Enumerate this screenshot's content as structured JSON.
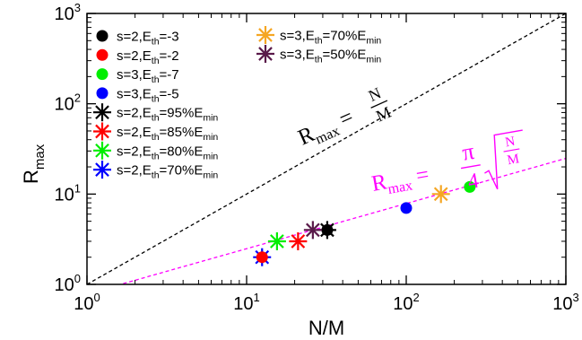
{
  "chart_data": {
    "type": "scatter",
    "title": "",
    "xlabel": "N/M",
    "ylabel_main": "R",
    "ylabel_sub": "max",
    "xscale": "log",
    "yscale": "log",
    "xlim": [
      1,
      1000
    ],
    "ylim": [
      1,
      1000
    ],
    "x_ticks": [
      {
        "value": 1,
        "base": "10",
        "exp": "0"
      },
      {
        "value": 10,
        "base": "10",
        "exp": "1"
      },
      {
        "value": 100,
        "base": "10",
        "exp": "2"
      },
      {
        "value": 1000,
        "base": "10",
        "exp": "3"
      }
    ],
    "y_ticks": [
      {
        "value": 1,
        "base": "10",
        "exp": "0"
      },
      {
        "value": 10,
        "base": "10",
        "exp": "1"
      },
      {
        "value": 100,
        "base": "10",
        "exp": "2"
      },
      {
        "value": 1000,
        "base": "10",
        "exp": "3"
      }
    ],
    "grid": false,
    "legend_placement": "top-left",
    "lines": [
      {
        "style": "dashed",
        "color": "#000000",
        "formula": "y = x"
      },
      {
        "style": "dashed",
        "color": "#ff00ff",
        "formula": "y = (pi/4) * sqrt(x)"
      }
    ],
    "annotations": {
      "black": {
        "lhs_main": "R",
        "lhs_sub": "max",
        "eq": "=",
        "num": "N",
        "den": "M"
      },
      "magenta": {
        "lhs_main": "R",
        "lhs_sub": "max",
        "eq": "=",
        "num": "π",
        "den": "4",
        "rad_num": "N",
        "rad_den": "M"
      }
    },
    "series": [
      {
        "name_prefix": "s=2,E",
        "name_sub": "th",
        "name_suffix": "=-3",
        "marker": "circle",
        "color": "#000000",
        "x": 32,
        "y": 4
      },
      {
        "name_prefix": "s=2,E",
        "name_sub": "th",
        "name_suffix": "=-2",
        "marker": "circle",
        "color": "#ff0000",
        "x": null,
        "y": null
      },
      {
        "name_prefix": "s=3,E",
        "name_sub": "th",
        "name_suffix": "=-7",
        "marker": "circle",
        "color": "#00ee00",
        "x": 250,
        "y": 12
      },
      {
        "name_prefix": "s=3,E",
        "name_sub": "th",
        "name_suffix": "=-5",
        "marker": "circle",
        "color": "#0000ff",
        "x": 100,
        "y": 7
      },
      {
        "name_prefix": "s=2,E",
        "name_sub": "th",
        "name_suffix": "=95%E",
        "name_sub2": "min",
        "marker": "asterisk",
        "color": "#000000",
        "x": 32,
        "y": 4
      },
      {
        "name_prefix": "s=2,E",
        "name_sub": "th",
        "name_suffix": "=85%E",
        "name_sub2": "min",
        "marker": "asterisk",
        "color": "#ff0000",
        "x": 21,
        "y": 3
      },
      {
        "name_prefix": "s=2,E",
        "name_sub": "th",
        "name_suffix": "=80%E",
        "name_sub2": "min",
        "marker": "asterisk",
        "color": "#00ee00",
        "x": 15.5,
        "y": 3
      },
      {
        "name_prefix": "s=2,E",
        "name_sub": "th",
        "name_suffix": "=70%E",
        "name_sub2": "min",
        "marker": "asterisk",
        "color": "#0000ff",
        "x": 12.5,
        "y": 2
      },
      {
        "name_prefix": "s=3,E",
        "name_sub": "th",
        "name_suffix": "=70%E",
        "name_sub2": "min",
        "marker": "asterisk",
        "color": "#f5a623",
        "x": 165,
        "y": 10
      },
      {
        "name_prefix": "s=3,E",
        "name_sub": "th",
        "name_suffix": "=50%E",
        "name_sub2": "min",
        "marker": "asterisk",
        "color": "#5a1a4a",
        "x": 26,
        "y": 4
      }
    ],
    "overlay_points": [
      {
        "marker": "circle",
        "color": "#ff0000",
        "x": 12.5,
        "y": 2
      }
    ]
  }
}
